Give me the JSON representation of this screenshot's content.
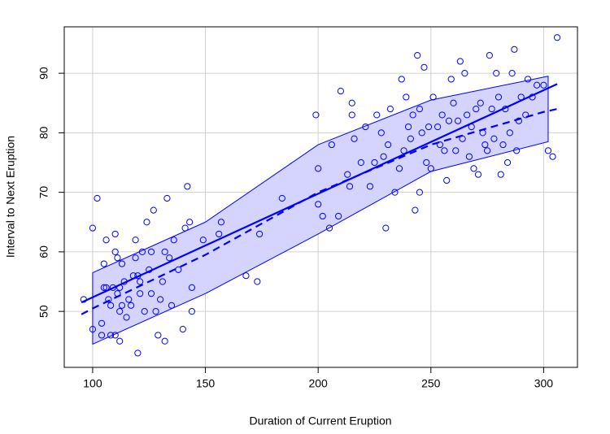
{
  "chart_data": {
    "type": "scatter",
    "xlabel": "Duration of Current Eruption",
    "ylabel": "Interval to Next Eruption",
    "xlim": [
      87.4,
      315
    ],
    "ylim": [
      40.6,
      97.8
    ],
    "xticks": [
      100,
      150,
      200,
      250,
      300
    ],
    "yticks": [
      50,
      60,
      70,
      80,
      90
    ],
    "grid": true,
    "color": "#0000ff",
    "band_fill": "#d4d4ff",
    "points": {
      "x": [
        96,
        100,
        100,
        102,
        104,
        104,
        105,
        105,
        106,
        106,
        107,
        108,
        108,
        109,
        110,
        110,
        110,
        111,
        111,
        112,
        112,
        112,
        113,
        113,
        114,
        115,
        116,
        117,
        118,
        119,
        119,
        120,
        120,
        121,
        121,
        122,
        123,
        124,
        125,
        126,
        126,
        127,
        128,
        129,
        130,
        131,
        132,
        132,
        133,
        134,
        135,
        136,
        138,
        140,
        141,
        142,
        143,
        144,
        144,
        149,
        156,
        157,
        168,
        173,
        174,
        184,
        199,
        200,
        200,
        202,
        205,
        206,
        209,
        210,
        213,
        214,
        215,
        215,
        216,
        219,
        221,
        223,
        225,
        226,
        228,
        229,
        230,
        231,
        232,
        234,
        236,
        237,
        238,
        239,
        240,
        241,
        242,
        243,
        244,
        245,
        245,
        246,
        247,
        248,
        249,
        250,
        251,
        253,
        254,
        255,
        256,
        257,
        258,
        259,
        260,
        261,
        262,
        263,
        264,
        265,
        266,
        267,
        268,
        269,
        270,
        271,
        272,
        273,
        274,
        275,
        276,
        277,
        278,
        279,
        280,
        281,
        282,
        283,
        284,
        285,
        286,
        287,
        288,
        289,
        290,
        292,
        293,
        295,
        297,
        300,
        302,
        304,
        306
      ],
      "y": [
        52,
        47,
        64,
        69,
        48,
        46,
        54,
        58,
        62,
        54,
        52,
        46,
        51,
        54,
        60,
        63,
        46,
        53,
        59,
        54,
        50,
        45,
        58,
        51,
        55,
        49,
        52,
        51,
        56,
        59,
        62,
        43,
        56,
        55,
        53,
        60,
        50,
        65,
        57,
        53,
        60,
        67,
        50,
        46,
        52,
        55,
        60,
        45,
        69,
        59,
        51,
        62,
        57,
        47,
        64,
        71,
        65,
        50,
        54,
        62,
        63,
        65,
        56,
        55,
        63,
        69,
        83,
        74,
        68,
        66,
        64,
        78,
        66,
        87,
        73,
        71,
        85,
        83,
        79,
        75,
        81,
        71,
        75,
        83,
        80,
        76,
        64,
        78,
        84,
        70,
        74,
        89,
        77,
        86,
        81,
        79,
        83,
        67,
        93,
        70,
        84,
        80,
        91,
        75,
        81,
        74,
        86,
        81,
        78,
        83,
        77,
        72,
        82,
        89,
        85,
        77,
        82,
        92,
        79,
        90,
        83,
        76,
        81,
        74,
        84,
        73,
        85,
        80,
        78,
        77,
        93,
        84,
        79,
        90,
        86,
        73,
        78,
        84,
        75,
        80,
        90,
        94,
        77,
        82,
        86,
        83,
        89,
        86,
        88,
        88,
        77,
        76,
        96
      ]
    },
    "lines": [
      {
        "style": "solid",
        "x": [
          95,
          306
        ],
        "y": [
          51.5,
          88.2
        ]
      },
      {
        "style": "dashed",
        "x": [
          95,
          100,
          150,
          200,
          250,
          300,
          306
        ],
        "y": [
          49.5,
          50.5,
          59.5,
          70,
          78,
          83.5,
          84
        ]
      }
    ],
    "band": {
      "x": [
        100,
        150,
        200,
        250,
        302
      ],
      "upper": [
        56.5,
        65,
        78,
        85.5,
        89.5
      ],
      "lower": [
        44.5,
        53,
        63,
        73.5,
        78.5
      ]
    }
  }
}
